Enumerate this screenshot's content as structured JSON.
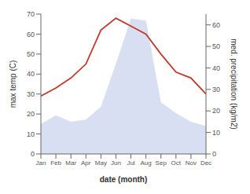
{
  "chart_data": {
    "type": "line",
    "xlabel": "date (month)",
    "ylabel": "max temp (C)",
    "y2label": "med. precipitation (kg/m2)",
    "categories": [
      "Jan",
      "Feb",
      "Mar",
      "Apr",
      "May",
      "Jun",
      "Jul",
      "Aug",
      "Sep",
      "Oct",
      "Nov",
      "Dec"
    ],
    "series": [
      {
        "type": "area",
        "axis": "y2",
        "color": "#b8c4e8",
        "values": [
          14,
          18,
          15,
          16,
          22,
          42,
          63,
          62,
          24,
          19,
          15,
          13
        ]
      },
      {
        "type": "line",
        "color": "#c0392b",
        "values": [
          29,
          33,
          38,
          45,
          62,
          68,
          64,
          60,
          50,
          41,
          38,
          30
        ]
      }
    ],
    "ylim": [
      0,
      70
    ],
    "yticks": [
      0,
      10,
      20,
      30,
      40,
      50,
      60,
      70
    ],
    "y2lim": [
      0,
      65
    ],
    "y2ticks": [
      0,
      10,
      20,
      30,
      40,
      50,
      60
    ],
    "grid": false
  }
}
